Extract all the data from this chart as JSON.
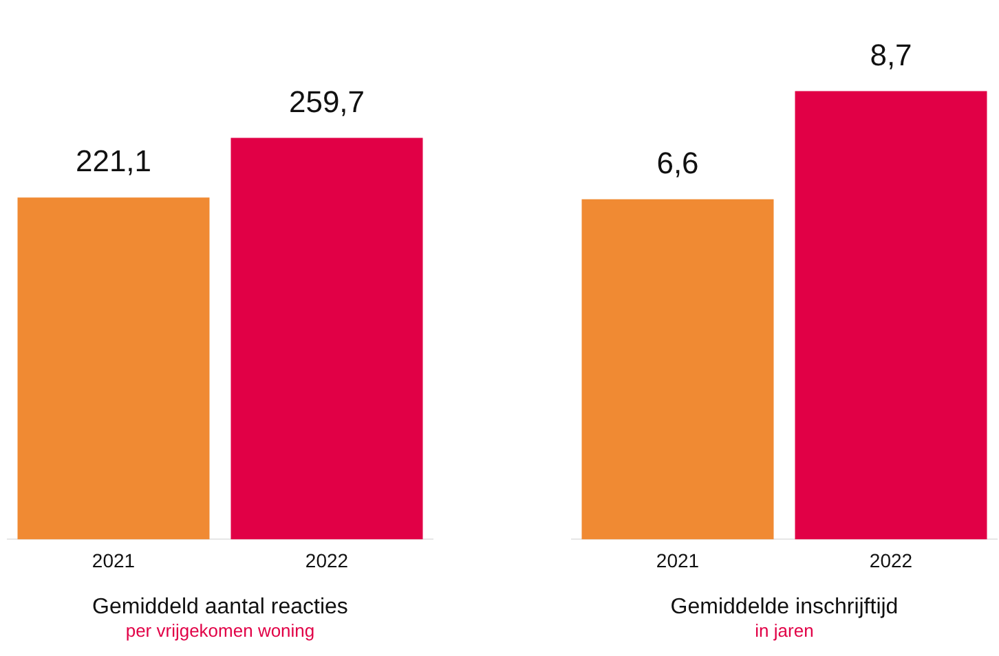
{
  "chart_data": [
    {
      "type": "bar",
      "categories": [
        "2021",
        "2022"
      ],
      "values": [
        221.1,
        259.7
      ],
      "colors": [
        "#f08a33",
        "#e10046"
      ],
      "value_labels": [
        "221,1",
        "259,7"
      ],
      "xlabel": "Gemiddeld aantal reacties",
      "subtitle": "per vrijgekomen woning",
      "legend": false,
      "grid": false,
      "tick_labels": "x"
    },
    {
      "type": "bar",
      "categories": [
        "2021",
        "2022"
      ],
      "values": [
        6.6,
        8.7
      ],
      "colors": [
        "#f08a33",
        "#e10046"
      ],
      "value_labels": [
        "6,6",
        "8,7"
      ],
      "xlabel": "Gemiddelde inschrijftijd",
      "subtitle": "in jaren",
      "legend": false,
      "grid": false,
      "tick_labels": "x"
    }
  ]
}
